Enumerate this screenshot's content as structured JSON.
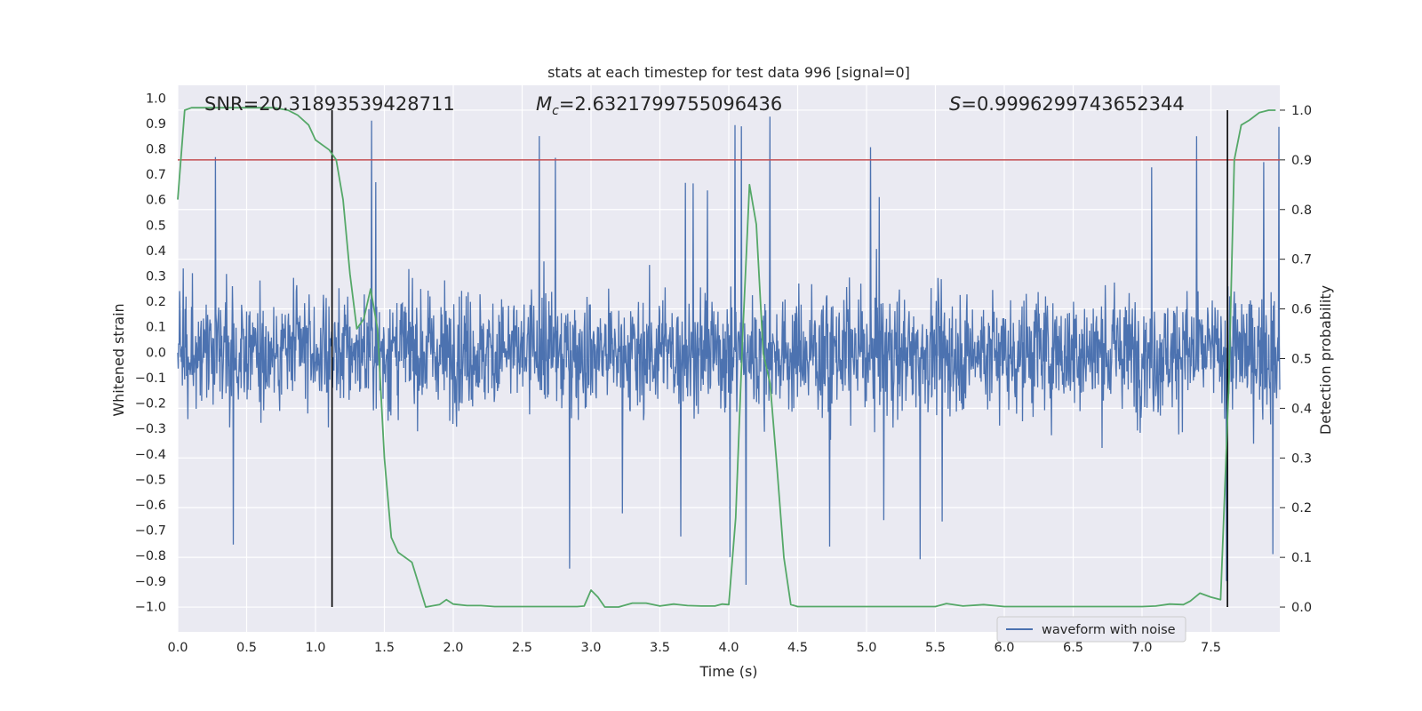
{
  "chart_data": {
    "type": "line",
    "title": "stats at each timestep for test data 996 [signal=0]",
    "xlabel": "Time (s)",
    "ylabel_left": "Whitened strain",
    "ylabel_right": "Detection probability",
    "xlim": [
      0.0,
      8.0
    ],
    "ylim_left": [
      -1.1,
      1.05
    ],
    "ylim_right": [
      -0.05,
      1.05
    ],
    "x_ticks": [
      "0.0",
      "0.5",
      "1.0",
      "1.5",
      "2.0",
      "2.5",
      "3.0",
      "3.5",
      "4.0",
      "4.5",
      "5.0",
      "5.5",
      "6.0",
      "6.5",
      "7.0",
      "7.5"
    ],
    "y_ticks_left": [
      "1.0",
      "0.9",
      "0.8",
      "0.7",
      "0.6",
      "0.5",
      "0.4",
      "0.3",
      "0.2",
      "0.1",
      "0.0",
      "−0.1",
      "−0.2",
      "−0.3",
      "−0.4",
      "−0.5",
      "−0.6",
      "−0.7",
      "−0.8",
      "−0.9",
      "−1.0"
    ],
    "y_ticks_right": [
      "1.0",
      "0.9",
      "0.8",
      "0.7",
      "0.6",
      "0.5",
      "0.4",
      "0.3",
      "0.2",
      "0.1",
      "0.0"
    ],
    "grid": true,
    "annotations": {
      "snr": "SNR=20.31893539428711",
      "mc_symbol": "M",
      "mc_sub": "c",
      "mc_value": "=2.6321799755096436",
      "s_symbol": "S",
      "s_value": "=0.9996299743652344"
    },
    "legend": {
      "position": "lower-right",
      "entries": [
        "waveform with noise"
      ]
    },
    "threshold_probability": 0.9,
    "vertical_lines_x": [
      1.12,
      7.62
    ],
    "waveform": {
      "name": "waveform with noise",
      "color": "#4c72b0",
      "typical_amplitude": 0.4,
      "peak_amplitude": 0.95
    },
    "probability_series": {
      "color": "#55a868",
      "x": [
        0.0,
        0.05,
        0.1,
        0.2,
        0.3,
        0.4,
        0.5,
        0.6,
        0.7,
        0.8,
        0.87,
        0.95,
        1.0,
        1.1,
        1.15,
        1.2,
        1.25,
        1.3,
        1.35,
        1.4,
        1.45,
        1.5,
        1.55,
        1.6,
        1.7,
        1.8,
        1.9,
        1.95,
        2.0,
        2.1,
        2.2,
        2.3,
        2.5,
        2.7,
        2.9,
        2.95,
        3.0,
        3.05,
        3.1,
        3.2,
        3.3,
        3.4,
        3.5,
        3.6,
        3.7,
        3.8,
        3.9,
        3.95,
        4.0,
        4.05,
        4.1,
        4.15,
        4.2,
        4.25,
        4.3,
        4.35,
        4.4,
        4.45,
        4.5,
        4.8,
        5.2,
        5.5,
        5.58,
        5.7,
        5.85,
        6.0,
        6.5,
        7.0,
        7.1,
        7.2,
        7.3,
        7.35,
        7.42,
        7.5,
        7.57,
        7.63,
        7.67,
        7.72,
        7.78,
        7.85,
        7.92,
        7.97
      ],
      "values": [
        0.82,
        1.0,
        1.005,
        1.005,
        1.005,
        1.005,
        1.005,
        1.005,
        1.005,
        1.0,
        0.99,
        0.97,
        0.94,
        0.92,
        0.9,
        0.82,
        0.67,
        0.56,
        0.58,
        0.64,
        0.56,
        0.3,
        0.14,
        0.11,
        0.09,
        0.0,
        0.005,
        0.015,
        0.006,
        0.003,
        0.003,
        0.001,
        0.001,
        0.001,
        0.001,
        0.002,
        0.034,
        0.02,
        0.0,
        0.0,
        0.008,
        0.008,
        0.002,
        0.006,
        0.003,
        0.002,
        0.002,
        0.006,
        0.005,
        0.18,
        0.54,
        0.85,
        0.77,
        0.51,
        0.45,
        0.28,
        0.1,
        0.005,
        0.001,
        0.001,
        0.001,
        0.001,
        0.007,
        0.002,
        0.005,
        0.001,
        0.001,
        0.001,
        0.002,
        0.006,
        0.005,
        0.012,
        0.028,
        0.02,
        0.015,
        0.45,
        0.9,
        0.97,
        0.98,
        0.995,
        1.0,
        1.0
      ]
    }
  }
}
